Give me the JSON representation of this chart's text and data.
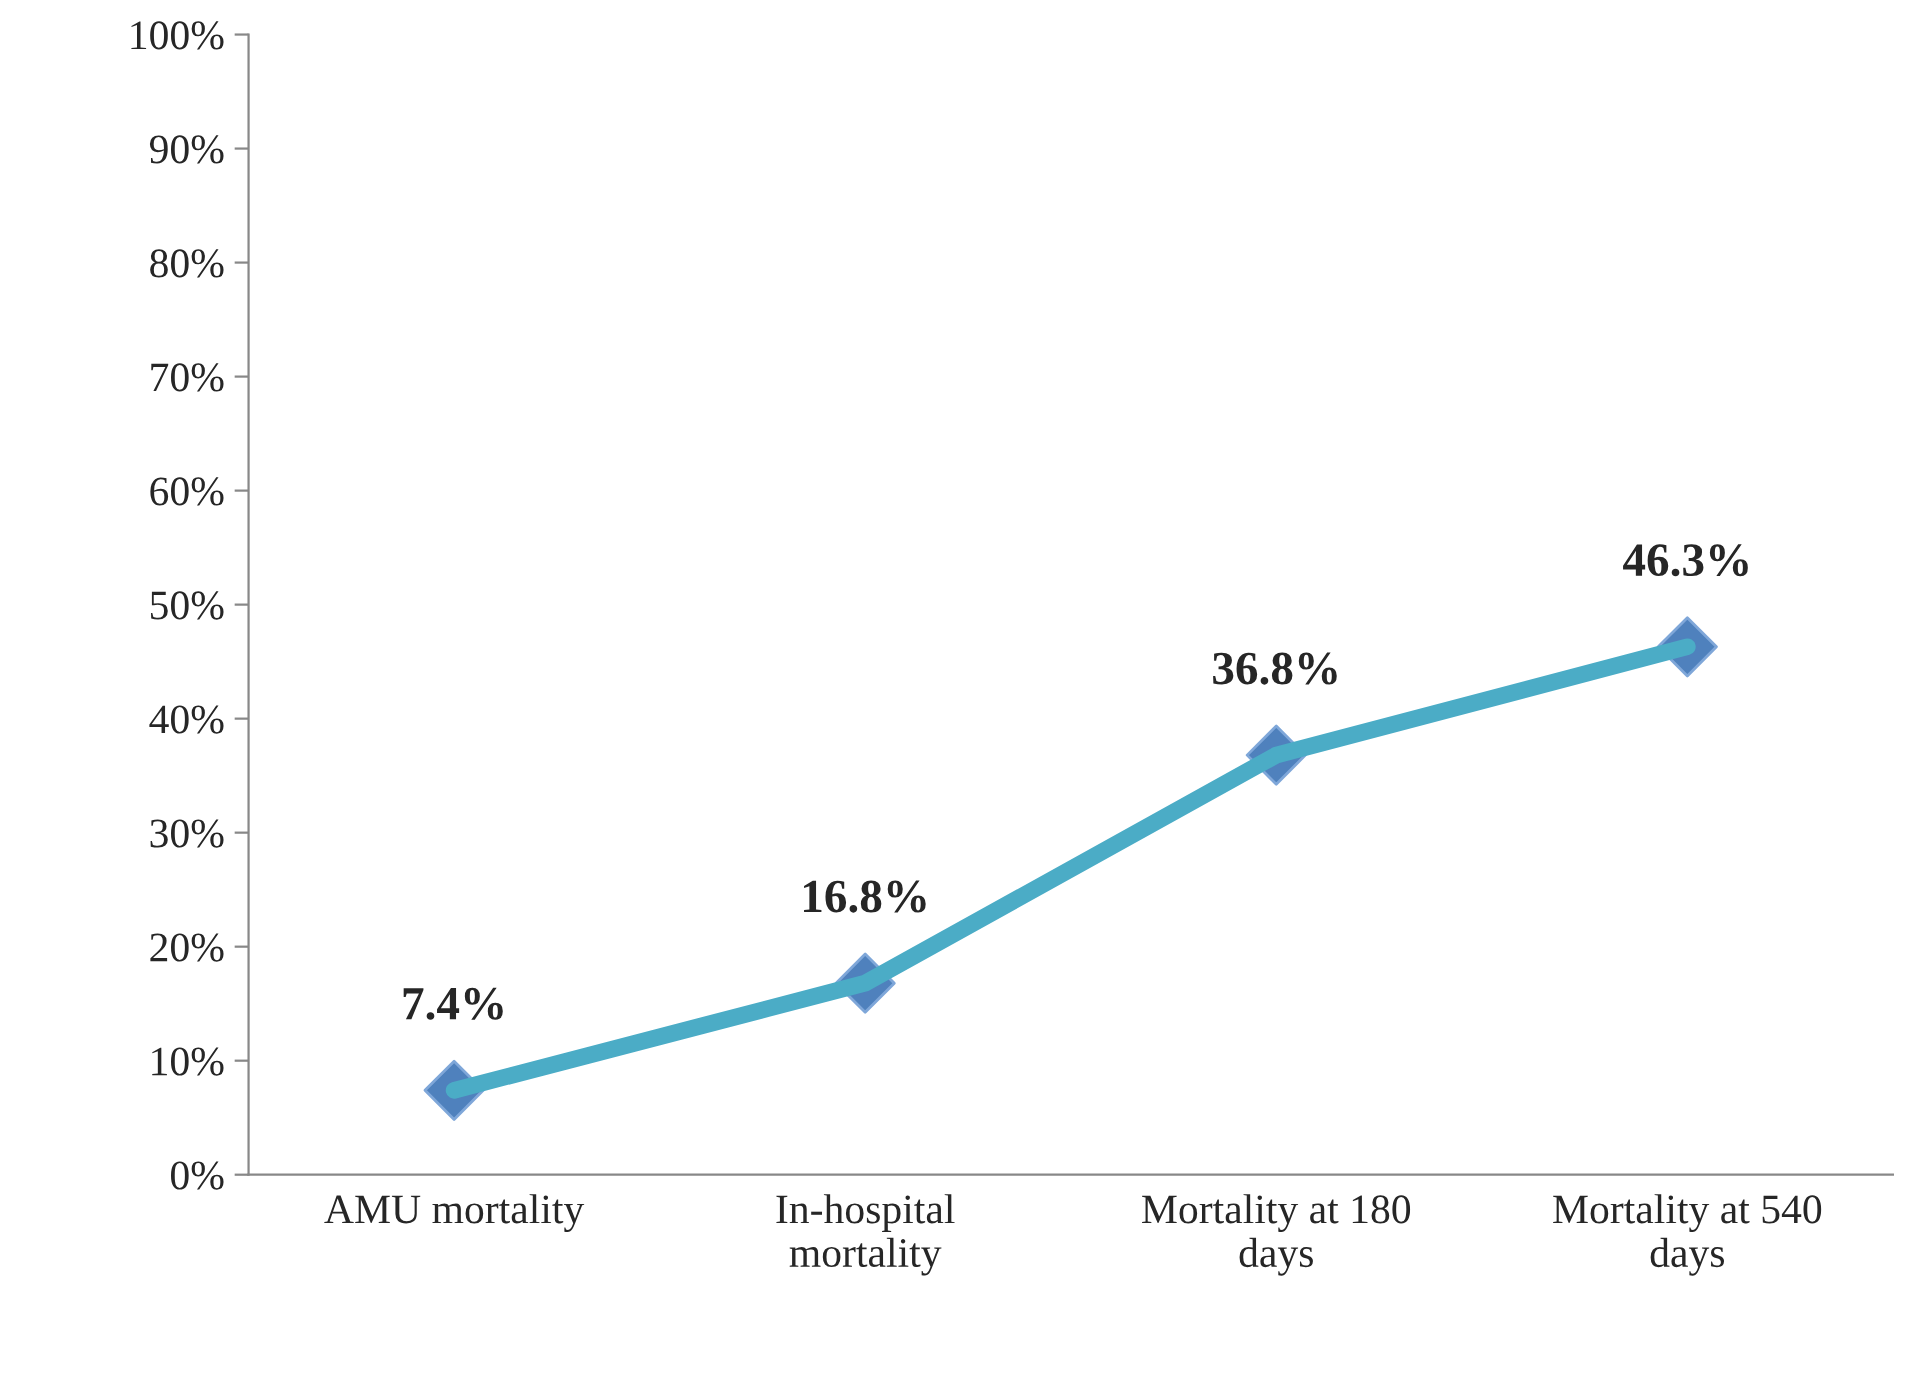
{
  "chart_data": {
    "type": "line",
    "categories": [
      "AMU mortality",
      "In-hospital\nmortality",
      "Mortality at 180\ndays",
      "Mortality at 540\ndays"
    ],
    "series": [
      {
        "color": "#4bacc6",
        "values": [
          7.4,
          16.8,
          36.8,
          46.3
        ],
        "value_labels": [
          "7.4%",
          "16.8%",
          "36.8%",
          "46.3%"
        ]
      }
    ],
    "ylim": [
      0,
      100
    ],
    "yticks": [
      {
        "value": 0,
        "label": "0%"
      },
      {
        "value": 10,
        "label": "10%"
      },
      {
        "value": 20,
        "label": "20%"
      },
      {
        "value": 30,
        "label": "30%"
      },
      {
        "value": 40,
        "label": "40%"
      },
      {
        "value": 50,
        "label": "50%"
      },
      {
        "value": 60,
        "label": "60%"
      },
      {
        "value": 70,
        "label": "70%"
      },
      {
        "value": 80,
        "label": "80%"
      },
      {
        "value": 90,
        "label": "90%"
      },
      {
        "value": 100,
        "label": "100%"
      }
    ],
    "marker": "diamond",
    "line_style": "solid",
    "grid": false,
    "legend": false
  }
}
